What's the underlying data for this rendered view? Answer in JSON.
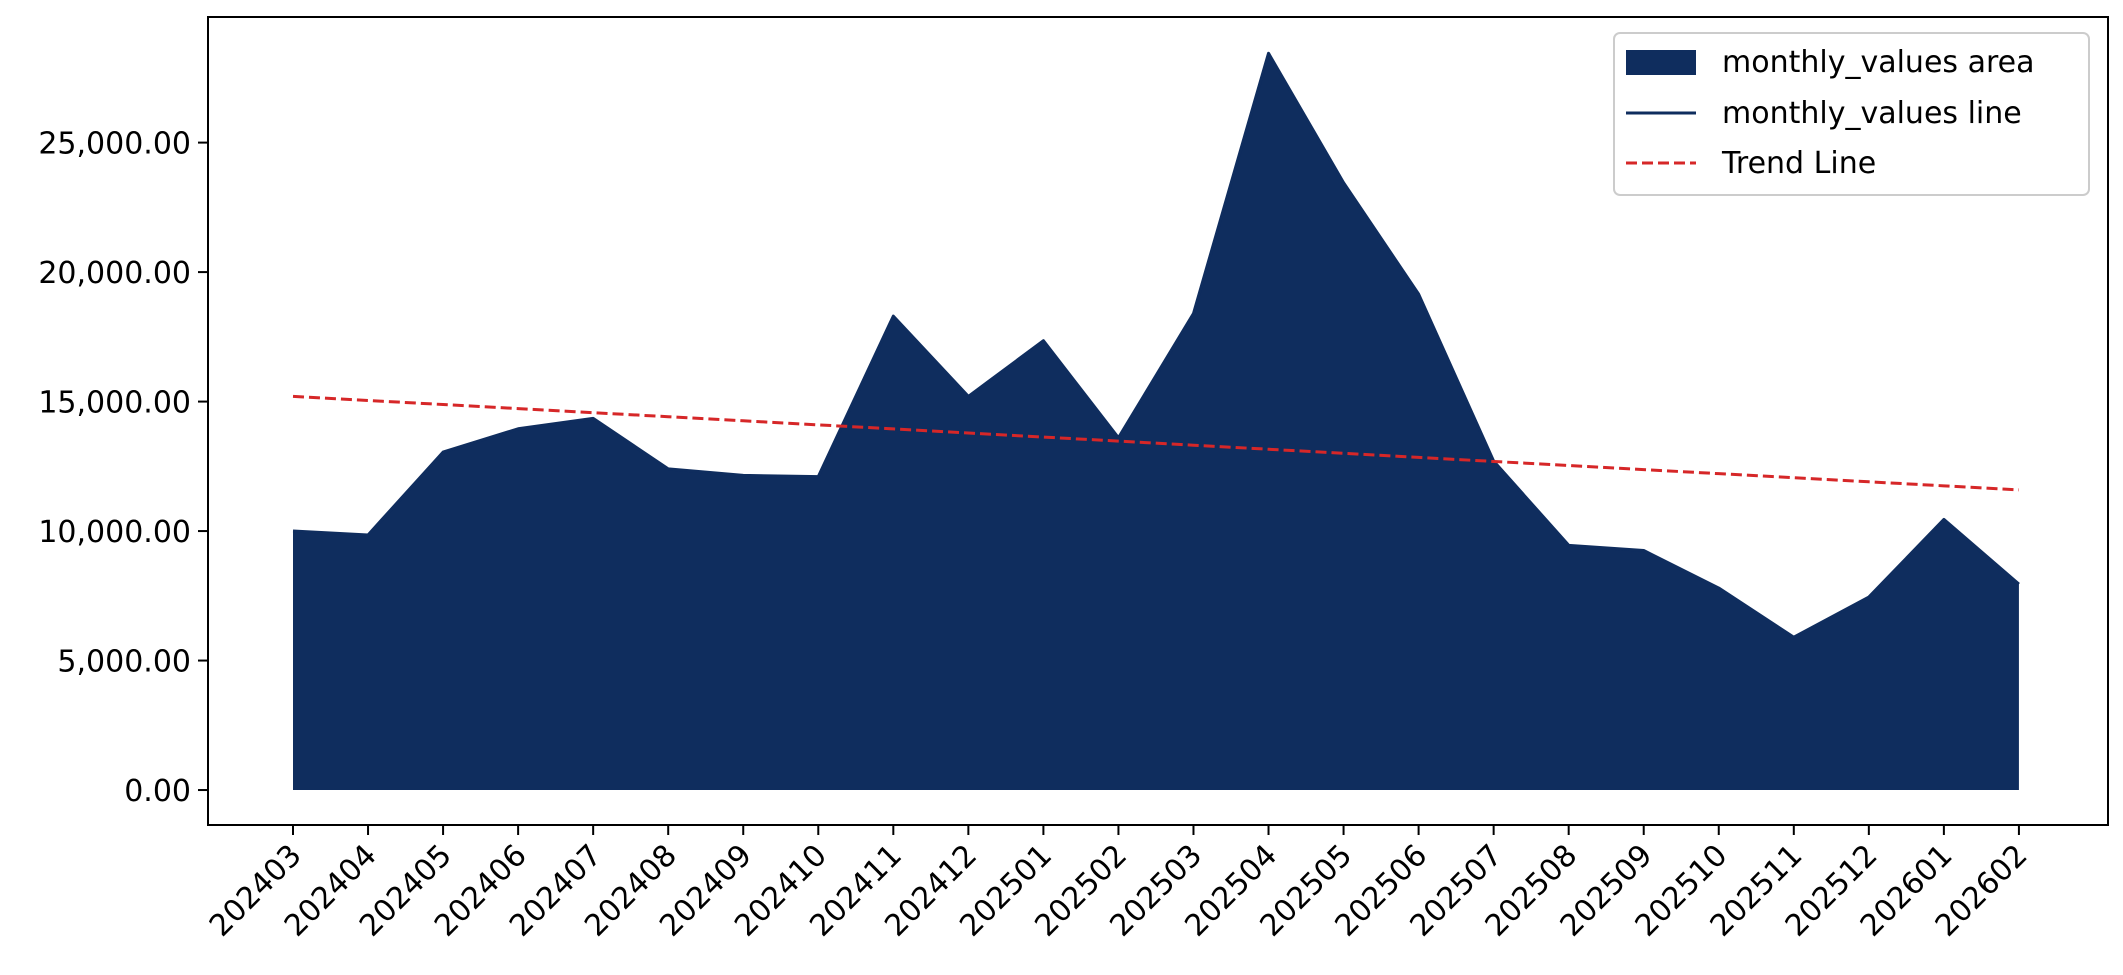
{
  "chart_data": {
    "type": "area",
    "title": "",
    "xlabel": "",
    "ylabel": "",
    "categories": [
      "202403",
      "202404",
      "202405",
      "202406",
      "202407",
      "202408",
      "202409",
      "202410",
      "202411",
      "202412",
      "202501",
      "202502",
      "202503",
      "202504",
      "202505",
      "202506",
      "202507",
      "202508",
      "202509",
      "202510",
      "202511",
      "202512",
      "202601",
      "202602"
    ],
    "series": [
      {
        "name": "monthly_values area",
        "render": "area",
        "color": "#0f2d5e",
        "values": [
          10000,
          9850,
          13050,
          13950,
          14350,
          12400,
          12150,
          12100,
          18300,
          15200,
          17350,
          13600,
          18400,
          28450,
          23450,
          19150,
          12700,
          9450,
          9250,
          7800,
          5900,
          7450,
          10450,
          7950
        ]
      },
      {
        "name": "monthly_values line",
        "render": "line",
        "color": "#0f2d5e",
        "values": [
          10000,
          9850,
          13050,
          13950,
          14350,
          12400,
          12150,
          12100,
          18300,
          15200,
          17350,
          13600,
          18400,
          28450,
          23450,
          19150,
          12700,
          9450,
          9250,
          7800,
          5900,
          7450,
          10450,
          7950
        ]
      },
      {
        "name": "Trend Line",
        "render": "dashed-line",
        "color": "#d62728",
        "values": [
          15200,
          15043,
          14886,
          14729,
          14572,
          14415,
          14258,
          14101,
          13944,
          13787,
          13630,
          13473,
          13316,
          13159,
          13002,
          12845,
          12688,
          12531,
          12374,
          12217,
          12060,
          11903,
          11746,
          11589
        ]
      }
    ],
    "ylim": [
      -1350,
      29850
    ],
    "yticks": [
      0,
      5000,
      10000,
      15000,
      20000,
      25000
    ],
    "ytick_labels": [
      "0.00",
      "5,000.00",
      "10,000.00",
      "15,000.00",
      "20,000.00",
      "25,000.00"
    ],
    "grid": false,
    "legend": {
      "position": "top-right",
      "entries": [
        "monthly_values area",
        "monthly_values line",
        "Trend Line"
      ]
    }
  }
}
